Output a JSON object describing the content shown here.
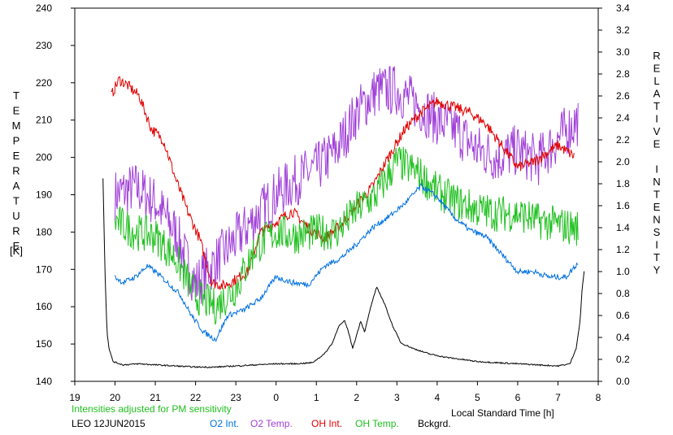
{
  "footer": {
    "note": "Intensities adjusted for PM sensitivity",
    "station_date": "LEO 12JUN2015",
    "legend": [
      {
        "label": "O2 Int.",
        "color": "#0070e0"
      },
      {
        "label": "O2 Temp.",
        "color": "#a040d8"
      },
      {
        "label": "OH Int.",
        "color": "#e00000"
      },
      {
        "label": "OH Temp.",
        "color": "#20c020"
      },
      {
        "label": "Bckgrd.",
        "color": "#000000"
      }
    ]
  },
  "chart_data": {
    "type": "line",
    "xlabel": "Local Standard Time [h]",
    "ylabel_left": "TEMPERATURE",
    "ylabel_left_unit": "[K]",
    "ylabel_right": "RELATIVE INTENSITY",
    "x_ticks": [
      "19",
      "20",
      "21",
      "22",
      "23",
      "0",
      "1",
      "2",
      "3",
      "4",
      "5",
      "6",
      "7",
      "8"
    ],
    "y_left_ticks": [
      "140",
      "150",
      "160",
      "170",
      "180",
      "190",
      "200",
      "210",
      "220",
      "230",
      "240"
    ],
    "y_right_ticks": [
      "0.0",
      "0.2",
      "0.4",
      "0.6",
      "0.8",
      "1.0",
      "1.2",
      "1.4",
      "1.6",
      "1.8",
      "2.0",
      "2.2",
      "2.4",
      "2.6",
      "2.8",
      "3.0",
      "3.2",
      "3.4"
    ],
    "xlim": [
      19,
      32
    ],
    "ylim_left": [
      140,
      240
    ],
    "ylim_right": [
      0,
      3.4
    ],
    "series": [
      {
        "name": "O2 Temp.",
        "axis": "left",
        "color": "#a040d8",
        "noise": 7,
        "x": [
          20.0,
          20.5,
          21.0,
          21.5,
          22.0,
          22.5,
          23.0,
          23.5,
          24.0,
          24.5,
          25.0,
          25.5,
          26.0,
          26.5,
          27.0,
          27.5,
          28.0,
          28.5,
          29.0,
          29.5,
          30.0,
          30.5,
          31.0,
          31.5
        ],
        "y": [
          190,
          192,
          188,
          180,
          166,
          172,
          178,
          184,
          190,
          194,
          197,
          202,
          212,
          218,
          218,
          214,
          210,
          207,
          202,
          200,
          202,
          199,
          205,
          210
        ]
      },
      {
        "name": "OH Int.",
        "axis": "right",
        "color": "#e00000",
        "noise": 0.05,
        "x": [
          19.9,
          20.1,
          20.3,
          20.6,
          20.9,
          21.2,
          21.5,
          21.8,
          22.1,
          22.4,
          22.7,
          23.0,
          23.3,
          23.6,
          24.0,
          24.4,
          24.8,
          25.2,
          25.6,
          26.0,
          26.4,
          26.8,
          27.2,
          27.6,
          28.0,
          28.4,
          28.8,
          29.2,
          29.6,
          30.0,
          30.4,
          30.8,
          31.0,
          31.4
        ],
        "y": [
          2.6,
          2.75,
          2.7,
          2.6,
          2.3,
          2.2,
          1.85,
          1.55,
          1.3,
          0.9,
          0.87,
          0.93,
          1.0,
          1.35,
          1.45,
          1.55,
          1.4,
          1.3,
          1.42,
          1.6,
          1.78,
          2.05,
          2.3,
          2.45,
          2.55,
          2.5,
          2.45,
          2.35,
          2.15,
          1.95,
          2.0,
          2.1,
          2.15,
          2.05
        ]
      },
      {
        "name": "OH Temp.",
        "axis": "left",
        "color": "#20c020",
        "noise": 5,
        "x": [
          20.0,
          20.5,
          21.0,
          21.5,
          22.0,
          22.5,
          23.0,
          23.5,
          24.0,
          24.5,
          25.0,
          25.5,
          26.0,
          26.5,
          27.0,
          27.5,
          28.0,
          28.5,
          29.0,
          29.5,
          30.0,
          30.5,
          31.0,
          31.5
        ],
        "y": [
          183,
          180,
          179,
          173,
          163,
          160,
          165,
          176,
          180,
          179,
          180,
          180,
          186,
          190,
          199,
          196,
          191,
          188,
          186,
          185,
          185,
          183,
          182,
          181
        ]
      },
      {
        "name": "O2 Int.",
        "axis": "right",
        "color": "#0070e0",
        "noise": 0.025,
        "x": [
          20.0,
          20.2,
          20.5,
          20.8,
          21.0,
          21.3,
          21.6,
          21.9,
          22.2,
          22.5,
          22.8,
          23.2,
          23.6,
          24.0,
          24.4,
          24.8,
          25.2,
          25.6,
          26.0,
          26.4,
          26.8,
          27.2,
          27.6,
          28.0,
          28.4,
          28.8,
          29.2,
          29.6,
          30.0,
          30.4,
          30.8,
          31.2,
          31.5
        ],
        "y": [
          0.95,
          0.9,
          0.95,
          1.05,
          1.0,
          0.9,
          0.8,
          0.6,
          0.45,
          0.38,
          0.6,
          0.65,
          0.75,
          0.95,
          0.9,
          0.88,
          1.05,
          1.12,
          1.25,
          1.4,
          1.5,
          1.62,
          1.78,
          1.68,
          1.5,
          1.38,
          1.32,
          1.16,
          1.0,
          1.0,
          0.95,
          0.95,
          1.08
        ]
      },
      {
        "name": "Bckgrd.",
        "axis": "right",
        "color": "#000000",
        "noise": 0.006,
        "x": [
          19.7,
          19.75,
          19.8,
          19.85,
          19.95,
          20.2,
          20.6,
          21.0,
          21.5,
          22.0,
          22.5,
          23.0,
          23.5,
          24.0,
          24.5,
          24.9,
          25.2,
          25.4,
          25.55,
          25.7,
          25.8,
          25.9,
          26.0,
          26.1,
          26.2,
          26.35,
          26.5,
          26.7,
          26.9,
          27.1,
          27.4,
          27.8,
          28.2,
          28.6,
          29.0,
          29.5,
          30.0,
          30.5,
          31.0,
          31.3,
          31.45,
          31.55,
          31.6,
          31.65
        ],
        "y": [
          1.85,
          1.0,
          0.45,
          0.3,
          0.18,
          0.15,
          0.16,
          0.15,
          0.14,
          0.13,
          0.13,
          0.14,
          0.15,
          0.16,
          0.16,
          0.17,
          0.25,
          0.35,
          0.5,
          0.55,
          0.45,
          0.3,
          0.42,
          0.55,
          0.45,
          0.68,
          0.86,
          0.7,
          0.5,
          0.35,
          0.3,
          0.25,
          0.22,
          0.2,
          0.18,
          0.17,
          0.16,
          0.15,
          0.14,
          0.16,
          0.3,
          0.55,
          0.85,
          1.0
        ]
      }
    ]
  }
}
